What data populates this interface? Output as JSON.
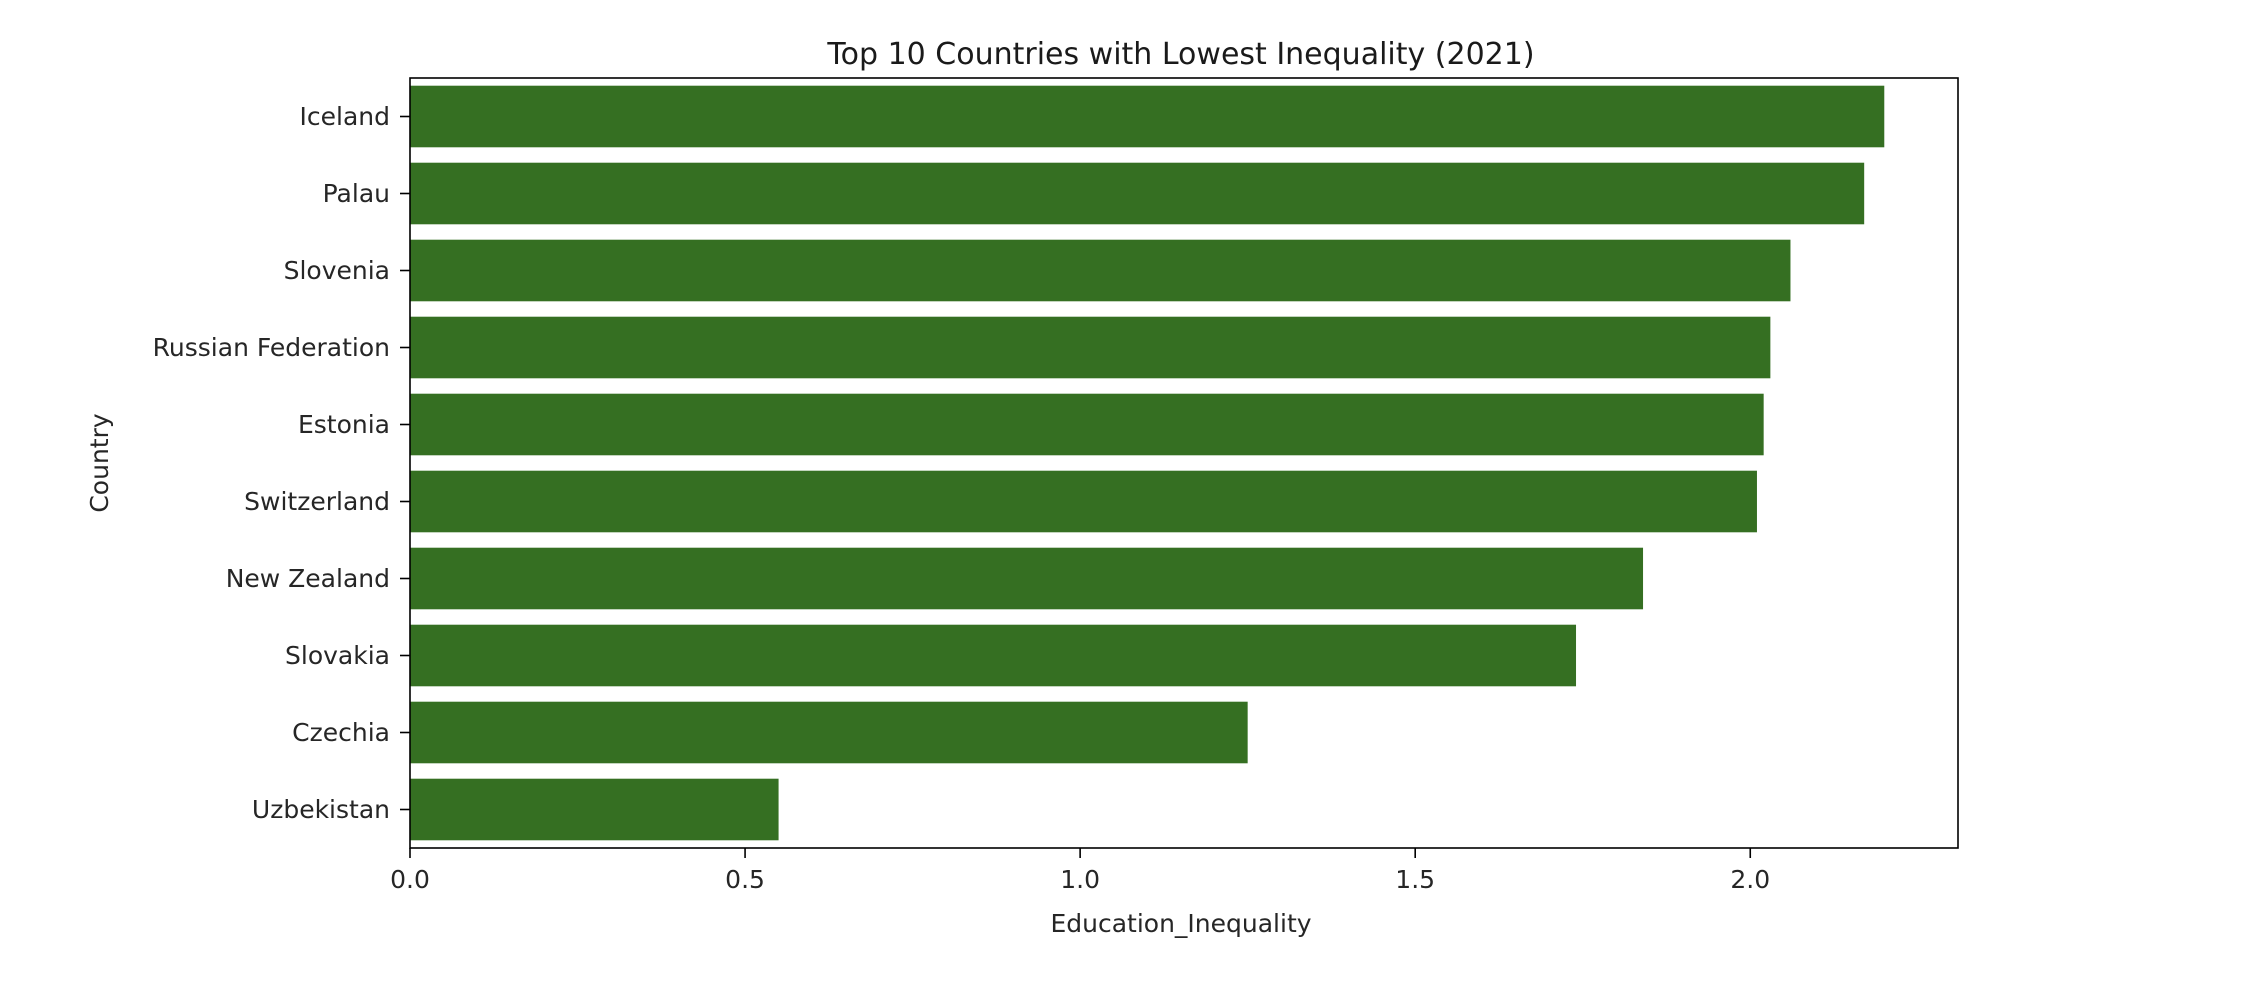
{
  "chart_data": {
    "type": "bar",
    "orientation": "horizontal",
    "title": "Top 10 Countries with Lowest Inequality (2021)",
    "xlabel": "Education_Inequality",
    "ylabel": "Country",
    "categories": [
      "Iceland",
      "Palau",
      "Slovenia",
      "Russian Federation",
      "Estonia",
      "Switzerland",
      "New Zealand",
      "Slovakia",
      "Czechia",
      "Uzbekistan"
    ],
    "values": [
      2.2,
      2.17,
      2.06,
      2.03,
      2.02,
      2.01,
      1.84,
      1.74,
      1.25,
      0.55
    ],
    "xlim": [
      0,
      2.31
    ],
    "xticks": [
      0.0,
      0.5,
      1.0,
      1.5,
      2.0
    ],
    "xtick_labels": [
      "0.0",
      "0.5",
      "1.0",
      "1.5",
      "2.0"
    ],
    "grid": false,
    "bar_color": "#356f22"
  }
}
